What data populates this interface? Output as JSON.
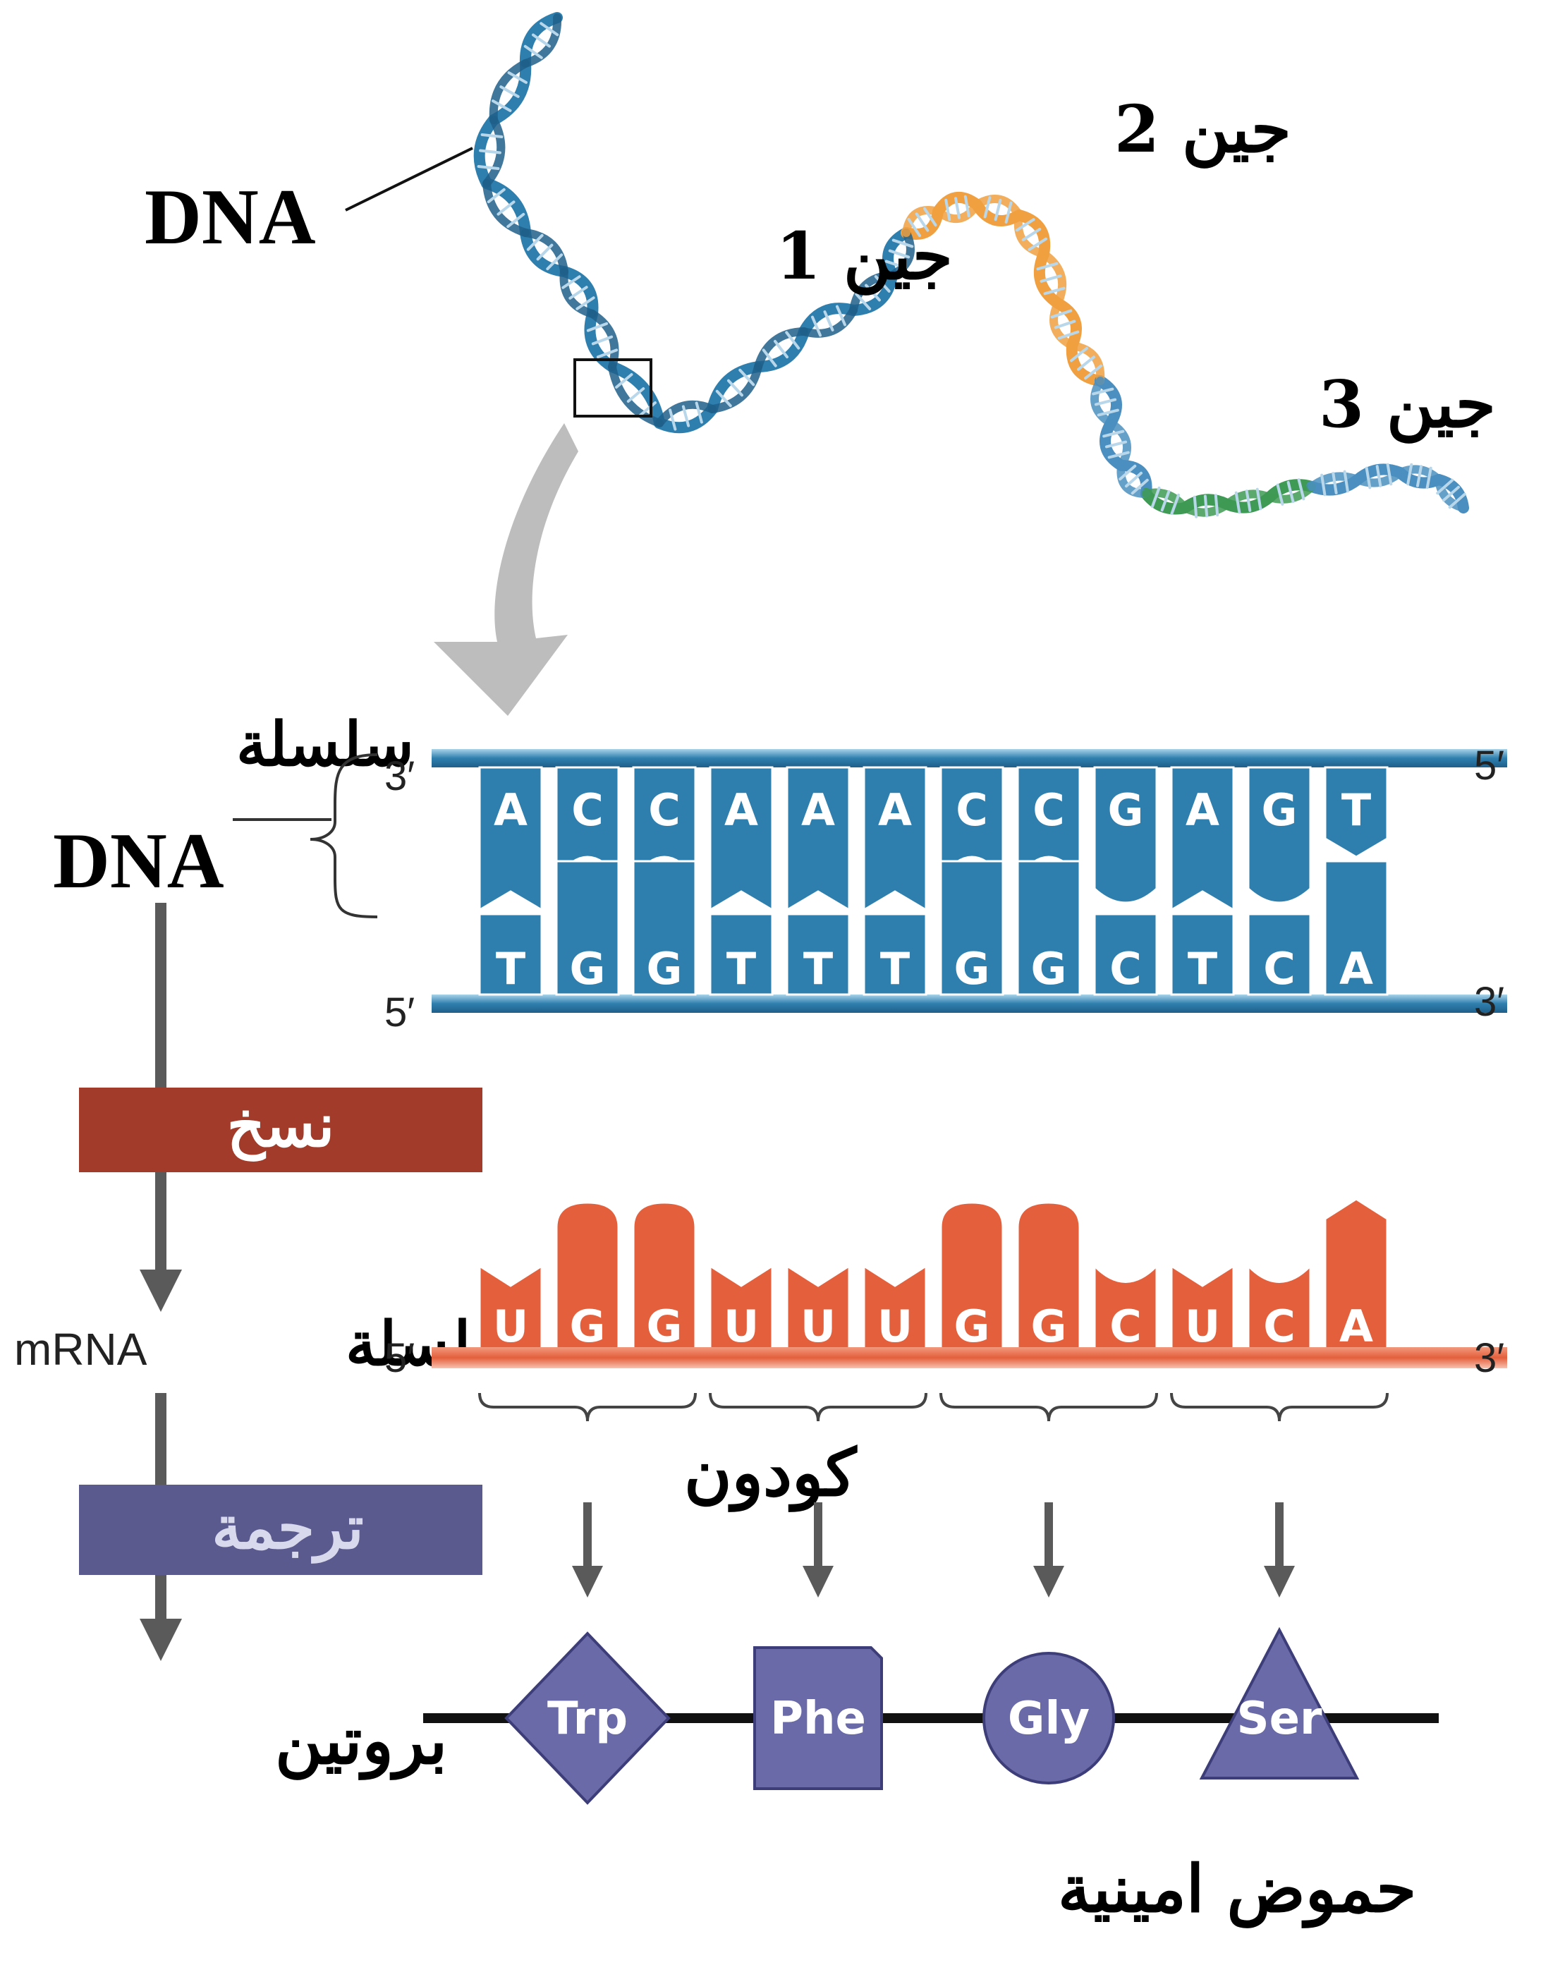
{
  "labels": {
    "dna_top": "DNA",
    "gene1": "جين 1",
    "gene2": "جين 2",
    "gene3": "جين 3",
    "dna_strand_word": "سلسلة",
    "dna_strand_dna": "DNA",
    "mrna_latin": "mRNA",
    "mrna_word": "سلسلة",
    "transcription": "نسخ",
    "translation": "ترجمة",
    "protein": "بروتين",
    "codon": "كودون",
    "amino_acids": "حموض امينية"
  },
  "dna_strand": {
    "top_bases": [
      "A",
      "C",
      "C",
      "A",
      "A",
      "A",
      "C",
      "C",
      "G",
      "A",
      "G",
      "T"
    ],
    "bottom_bases": [
      "T",
      "G",
      "G",
      "T",
      "T",
      "T",
      "G",
      "G",
      "C",
      "T",
      "C",
      "A"
    ],
    "top_left_end": "3′",
    "top_right_end": "5′",
    "bottom_left_end": "5′",
    "bottom_right_end": "3′"
  },
  "mrna_strand": {
    "bases": [
      "U",
      "G",
      "G",
      "U",
      "U",
      "U",
      "G",
      "G",
      "C",
      "U",
      "C",
      "A"
    ],
    "left_end": "5′",
    "right_end": "3′"
  },
  "amino_acid_chain": [
    {
      "name": "Trp",
      "shape": "diamond"
    },
    {
      "name": "Phe",
      "shape": "square"
    },
    {
      "name": "Gly",
      "shape": "circle"
    },
    {
      "name": "Ser",
      "shape": "triangle"
    }
  ],
  "colors": {
    "dna_blue": "#2f7fae",
    "dna_dark_blue": "#1f5f8a",
    "gene2_orange": "#f0a040",
    "gene3_green": "#3e9a54",
    "mrna_orange": "#e45f3c",
    "transcription_box": "#a23b2a",
    "translation_box": "#5b5a8e",
    "amino_purple": "#6a6aa8",
    "arrow_gray": "#5a5a5a"
  }
}
